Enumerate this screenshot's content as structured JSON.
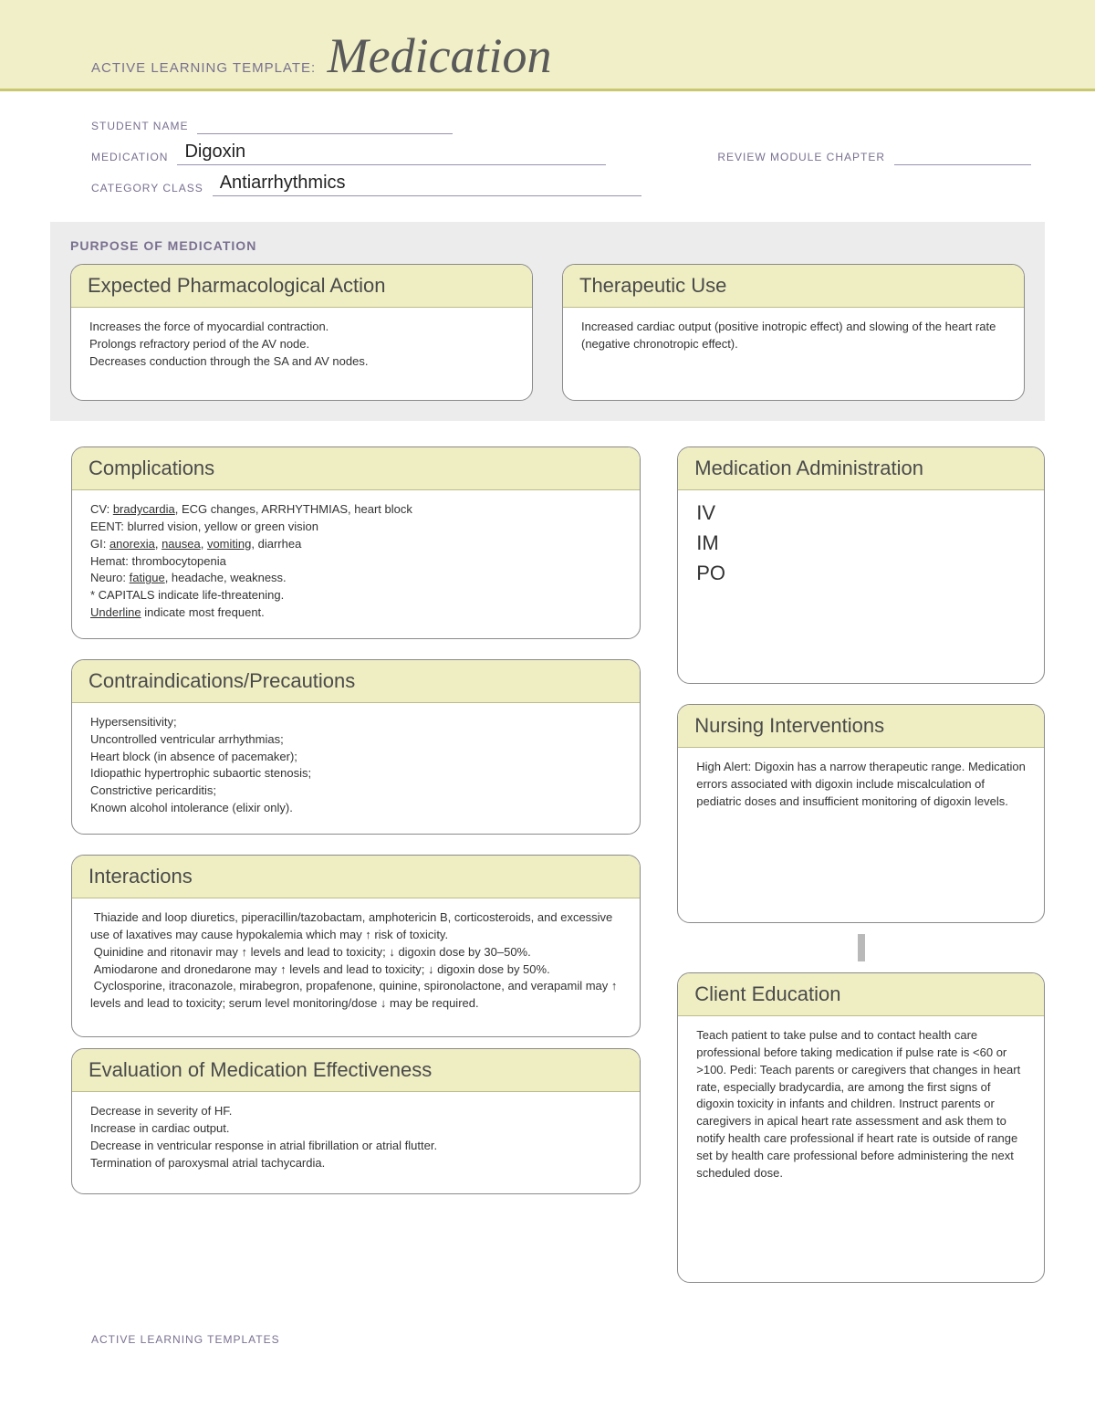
{
  "colors": {
    "banner_bg": "#f0efc7",
    "banner_rule": "#c9c86f",
    "label_text": "#7a7090",
    "card_head_bg": "#efeec3",
    "card_border": "#8a8a8a",
    "purpose_bg": "#ececec",
    "connector": "#b9b9b9"
  },
  "banner": {
    "label": "ACTIVE LEARNING TEMPLATE:",
    "title": "Medication"
  },
  "meta": {
    "student_label": "STUDENT NAME",
    "student_value": "",
    "medication_label": "MEDICATION",
    "medication_value": "Digoxin",
    "review_label": "REVIEW MODULE CHAPTER",
    "review_value": "",
    "category_label": "CATEGORY CLASS",
    "category_value": "Antiarrhythmics"
  },
  "purpose": {
    "heading": "PURPOSE OF MEDICATION",
    "expected": {
      "title": "Expected Pharmacological Action",
      "body": "Increases the force of myocardial contraction.\nProlongs refractory period of the AV node.\nDecreases conduction through the SA and AV nodes."
    },
    "therapeutic": {
      "title": "Therapeutic Use",
      "body": "Increased cardiac output (positive inotropic effect) and slowing of the heart rate (negative chronotropic effect)."
    }
  },
  "complications": {
    "title": "Complications",
    "body_html": "CV: <u>bradycardia</u>, ECG changes, ARRHYTHMIAS, heart block<br>EENT: blurred vision, yellow or green vision<br>GI: <u>anorexia</u>, <u>nausea</u>, <u>vomiting</u>, diarrhea<br>Hemat: thrombocytopenia<br>Neuro: <u>fatigue</u>, headache, weakness.<br>* CAPITALS indicate life-threatening.<br><u>Underline</u> indicate most frequent."
  },
  "contraindications": {
    "title": "Contraindications/Precautions",
    "body": "Hypersensitivity;\nUncontrolled ventricular arrhythmias;\nHeart block (in absence of pacemaker);\nIdiopathic hypertrophic subaortic stenosis;\nConstrictive pericarditis;\nKnown alcohol intolerance (elixir only)."
  },
  "interactions": {
    "title": "Interactions",
    "body_html": "&nbsp;Thiazide and loop diuretics, piperacillin/tazobactam, amphotericin B, corticosteroids, and excessive use of laxatives may cause hypokalemia which may ↑ risk of toxicity.<br>&nbsp;Quinidine and ritonavir may ↑ levels and lead to toxicity; ↓ digoxin dose by 30–50%.<br>&nbsp;Amiodarone and dronedarone may ↑ levels and lead to toxicity; ↓ digoxin dose by 50%.<br>&nbsp;Cyclosporine, itraconazole, mirabegron, propafenone, quinine, spironolactone, and verapamil may ↑ levels and lead to toxicity; serum level monitoring/dose ↓ may be required."
  },
  "evaluation": {
    "title": "Evaluation of Medication Effectiveness",
    "body": "Decrease in severity of HF.\nIncrease in cardiac output.\nDecrease in ventricular response in atrial fibrillation or atrial flutter.\nTermination of paroxysmal atrial tachycardia."
  },
  "administration": {
    "title": "Medication Administration",
    "routes": [
      "IV",
      "IM",
      "PO"
    ]
  },
  "nursing": {
    "title": "Nursing Interventions",
    "body": "High Alert: Digoxin has a narrow therapeutic range. Medication errors associated with digoxin include miscalculation of pediatric doses and insufficient monitoring of digoxin levels."
  },
  "client_education": {
    "title": "Client Education",
    "body": "Teach patient to take pulse and to contact health care professional before taking medication if pulse rate is <60 or >100. Pedi: Teach parents or caregivers that changes in heart rate, especially bradycardia, are among the first signs of digoxin toxicity in infants and children. Instruct parents or caregivers in apical heart rate assessment and ask them to notify health care professional if heart rate is outside of range set by health care professional before administering the next scheduled dose."
  },
  "footer": "ACTIVE LEARNING TEMPLATES"
}
